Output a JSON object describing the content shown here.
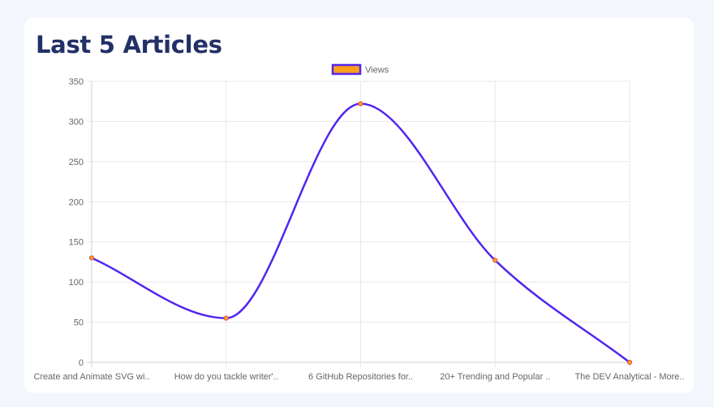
{
  "page": {
    "title": "Last 5 Articles"
  },
  "colors": {
    "background": "#f3f6fd",
    "card": "#ffffff",
    "title": "#233067",
    "line": "#5225f0",
    "legend_fill": "#ff9f1a",
    "point_fill": "#ff9f1a",
    "point_border": "#d9534f",
    "grid": "#e8e8e8",
    "tick_text": "#666666"
  },
  "chart_data": {
    "type": "line",
    "title": "",
    "xlabel": "",
    "ylabel": "",
    "categories": [
      "Create and Animate SVG wi..",
      "How do you tackle writer'..",
      "6 GitHub Repositories for..",
      "20+ Trending and Popular ..",
      "The DEV Analytical - More.."
    ],
    "series": [
      {
        "name": "Views",
        "values": [
          130,
          55,
          322,
          127,
          0
        ]
      }
    ],
    "ylim": [
      0,
      350
    ],
    "yticks": [
      0,
      50,
      100,
      150,
      200,
      250,
      300,
      350
    ],
    "curve": "smooth",
    "grid": true,
    "legend": "top-center"
  }
}
